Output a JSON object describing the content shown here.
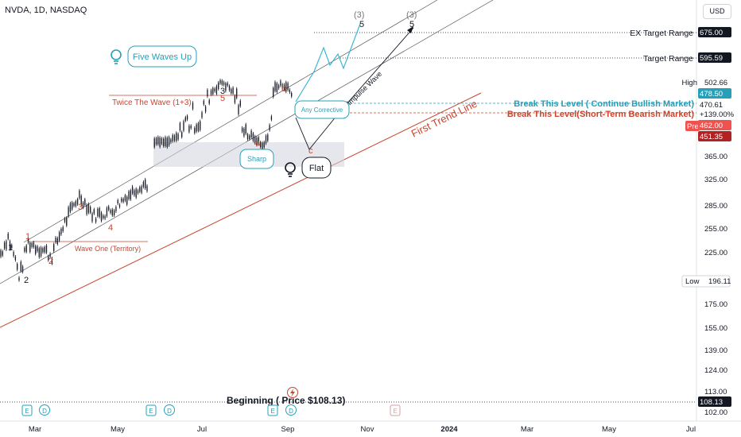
{
  "header": {
    "symbol": "NVDA, 1D, NASDAQ",
    "currency": "USD"
  },
  "colors": {
    "red": "#c8452f",
    "teal": "#26a0b8",
    "black": "#131722",
    "grid": "#e6e8ee",
    "pre": "#ef5350"
  },
  "chart_data": {
    "type": "line",
    "title": "NVDA, 1D, NASDAQ",
    "y_ticks": [
      102,
      113,
      124,
      139,
      155,
      175,
      225,
      255,
      285,
      325,
      365
    ],
    "x_ticks": [
      "Mar",
      "May",
      "Jul",
      "Sep",
      "Nov",
      "2024",
      "Mar",
      "May",
      "Jul"
    ],
    "price_labels": [
      {
        "name": "ex-target-value",
        "value": "675.00"
      },
      {
        "name": "target-value",
        "value": "595.59"
      },
      {
        "name": "high-value",
        "value": "502.66"
      },
      {
        "name": "level-bull-value",
        "value": "478.50"
      },
      {
        "name": "last-price",
        "value": "470.61"
      },
      {
        "name": "change-pct",
        "value": "+139.00%"
      },
      {
        "name": "pre-value",
        "value": "462.00"
      },
      {
        "name": "level-bear-value",
        "value": "451.35"
      },
      {
        "name": "low-value",
        "value": "196.11"
      },
      {
        "name": "beginning-value",
        "value": "108.13"
      }
    ],
    "legend": {
      "high": "High",
      "low": "Low",
      "pre": "Pre"
    },
    "annotations": {
      "ex_target": "EX Target Range",
      "target": "Target Range",
      "break_bull": "Break This Level ( Continue Bullish Market)",
      "break_bear": "Break This Level(Short-Term Bearish Market)",
      "first_trend": "First Trend Line",
      "impulse": "Impulse Wave",
      "twice": "Twice The Wave (1+3)",
      "wave_one": "Wave One (Territory)",
      "five_waves": "Five Waves Up",
      "any_corrective": "Any Corrective",
      "sharp": "Sharp",
      "flat": "Flat",
      "beginning": "Beginning ( Price $108.13)",
      "wave3_paren_left": "(3)",
      "wave3_paren_right": "(3)",
      "wave5_left": "5",
      "wave5_right": "5"
    },
    "wave_labels": [
      {
        "name": "wave-black-1",
        "text": "1"
      },
      {
        "name": "wave-black-2",
        "text": "2"
      },
      {
        "name": "wave-black-3",
        "text": "3"
      },
      {
        "name": "wave-red-1",
        "text": "1"
      },
      {
        "name": "wave-red-2",
        "text": "2"
      },
      {
        "name": "wave-red-3",
        "text": "3"
      },
      {
        "name": "wave-red-4",
        "text": "4"
      },
      {
        "name": "wave-red-5",
        "text": "5"
      },
      {
        "name": "wave-red-a",
        "text": "a"
      },
      {
        "name": "wave-red-b",
        "text": "b"
      },
      {
        "name": "wave-red-c",
        "text": "c"
      }
    ],
    "event_markers": [
      {
        "name": "earnings-marker-1",
        "text": "E"
      },
      {
        "name": "dividend-marker-1",
        "text": "D"
      },
      {
        "name": "earnings-marker-2",
        "text": "E"
      },
      {
        "name": "dividend-marker-2",
        "text": "D"
      },
      {
        "name": "earnings-marker-3",
        "text": "E"
      },
      {
        "name": "dividend-marker-3",
        "text": "D"
      },
      {
        "name": "earnings-marker-4",
        "text": "E"
      }
    ]
  }
}
